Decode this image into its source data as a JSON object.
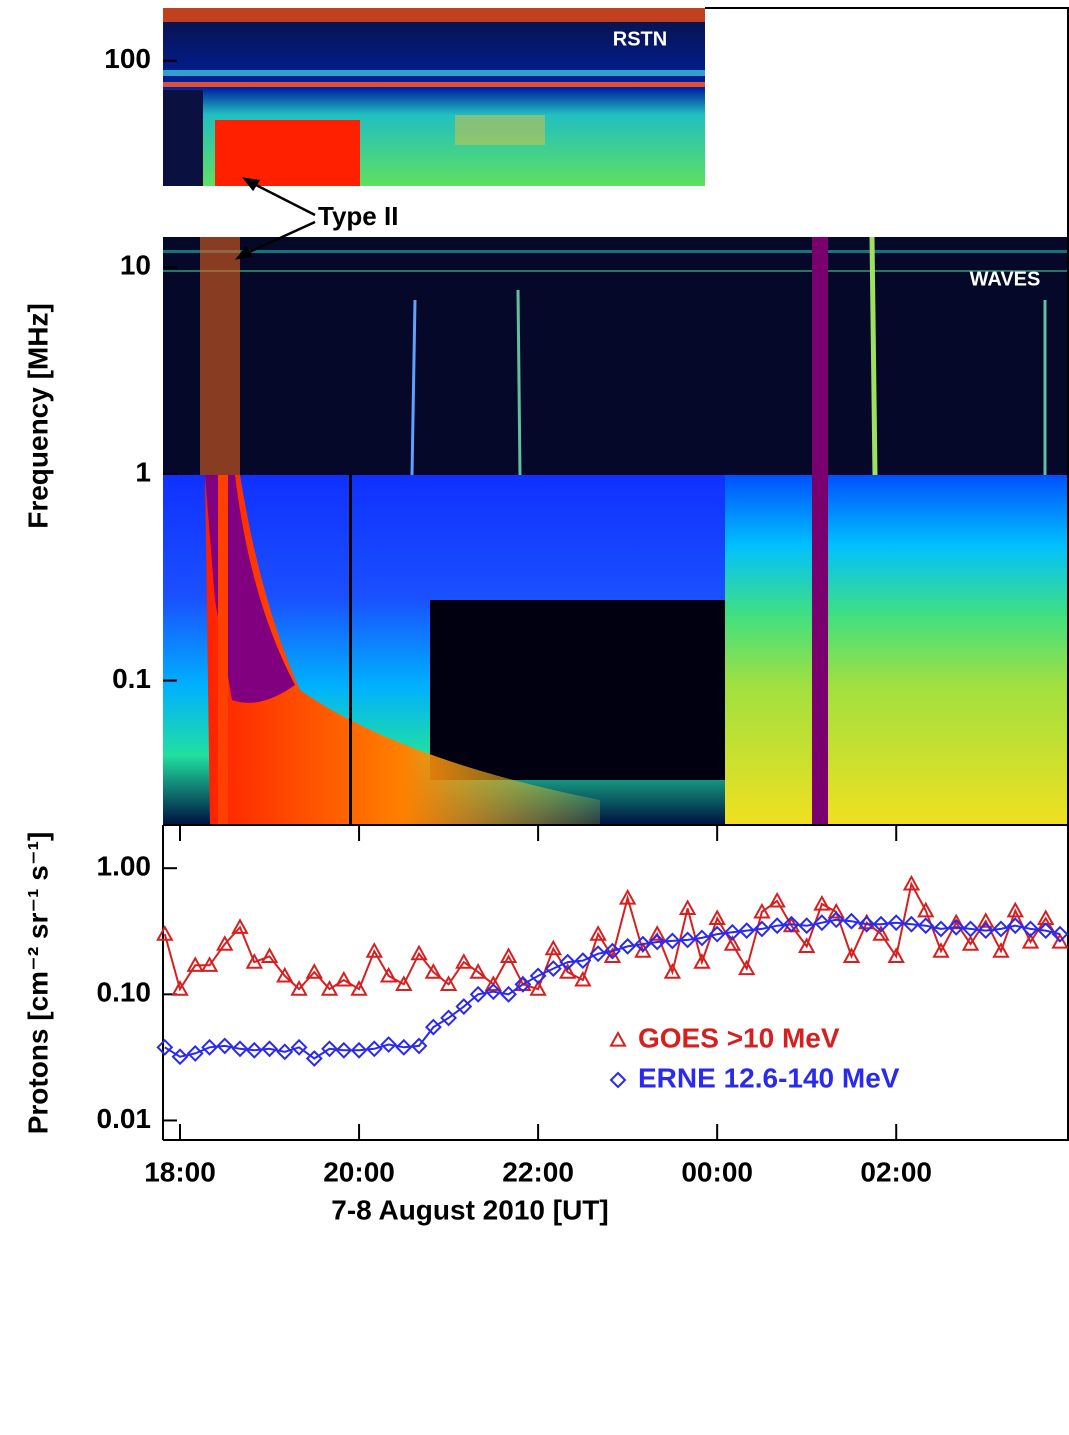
{
  "chart_data": [
    {
      "type": "spectrogram",
      "y_label": "Frequency [MHz]",
      "ylim": [
        0.02,
        180
      ],
      "yticks": [
        100,
        10,
        1,
        {
          "value": 0.1,
          "label": "0.1"
        }
      ],
      "log_y": true,
      "annotations": [
        "RSTN",
        "WAVES",
        "Type II"
      ]
    },
    {
      "type": "line",
      "x_label": "7-8 August 2010 [UT]",
      "y_label": "Protons [cm⁻² sr⁻¹ s⁻¹]",
      "xlim": [
        -0.19,
        9.93
      ],
      "xticks": [
        {
          "value": 0,
          "label": "18:00"
        },
        {
          "value": 2,
          "label": "20:00"
        },
        {
          "value": 4,
          "label": "22:00"
        },
        {
          "value": 6,
          "label": "00:00"
        },
        {
          "value": 8,
          "label": "02:00"
        }
      ],
      "ylim": [
        0.007,
        2.2
      ],
      "yticks": [
        {
          "value": 1,
          "label": "1.00"
        },
        {
          "value": 0.1,
          "label": "0.10"
        },
        {
          "value": 0.01,
          "label": "0.01"
        }
      ],
      "log_y": true,
      "legend": "lower right",
      "x": [
        -0.17,
        0,
        0.17,
        0.33,
        0.5,
        0.67,
        0.83,
        1,
        1.17,
        1.33,
        1.5,
        1.67,
        1.83,
        2,
        2.17,
        2.33,
        2.5,
        2.67,
        2.83,
        3,
        3.17,
        3.33,
        3.5,
        3.67,
        3.83,
        4,
        4.17,
        4.33,
        4.5,
        4.67,
        4.83,
        5,
        5.17,
        5.33,
        5.5,
        5.67,
        5.83,
        6,
        6.17,
        6.33,
        6.5,
        6.67,
        6.83,
        7,
        7.17,
        7.33,
        7.5,
        7.67,
        7.83,
        8,
        8.17,
        8.33,
        8.5,
        8.67,
        8.83,
        9,
        9.17,
        9.33,
        9.5,
        9.67,
        9.83
      ],
      "series": [
        {
          "name": "GOES >10 MeV",
          "color": "#d62020",
          "marker": "triangle",
          "values": [
            0.3,
            0.11,
            0.17,
            0.17,
            0.25,
            0.34,
            0.18,
            0.2,
            0.14,
            0.11,
            0.15,
            0.11,
            0.13,
            0.11,
            0.22,
            0.14,
            0.12,
            0.21,
            0.15,
            0.12,
            0.18,
            0.15,
            0.12,
            0.2,
            0.12,
            0.11,
            0.23,
            0.15,
            0.13,
            0.3,
            0.2,
            0.58,
            0.22,
            0.3,
            0.15,
            0.48,
            0.18,
            0.4,
            0.25,
            0.16,
            0.45,
            0.55,
            0.35,
            0.24,
            0.52,
            0.45,
            0.2,
            0.37,
            0.3,
            0.2,
            0.75,
            0.46,
            0.22,
            0.37,
            0.25,
            0.38,
            0.22,
            0.46,
            0.26,
            0.4,
            0.26
          ]
        },
        {
          "name": "ERNE 12.6-140 MeV",
          "color": "#2a2aee",
          "marker": "diamond",
          "values": [
            0.038,
            0.032,
            0.034,
            0.038,
            0.039,
            0.037,
            0.036,
            0.037,
            0.035,
            0.038,
            0.031,
            0.037,
            0.036,
            0.036,
            0.037,
            0.04,
            0.038,
            0.039,
            0.055,
            0.065,
            0.08,
            0.1,
            0.105,
            0.1,
            0.12,
            0.14,
            0.16,
            0.18,
            0.185,
            0.21,
            0.22,
            0.24,
            0.25,
            0.26,
            0.265,
            0.27,
            0.28,
            0.3,
            0.31,
            0.32,
            0.33,
            0.35,
            0.36,
            0.35,
            0.37,
            0.39,
            0.38,
            0.36,
            0.36,
            0.37,
            0.36,
            0.35,
            0.33,
            0.34,
            0.33,
            0.32,
            0.33,
            0.35,
            0.33,
            0.32,
            0.3
          ]
        }
      ]
    }
  ]
}
